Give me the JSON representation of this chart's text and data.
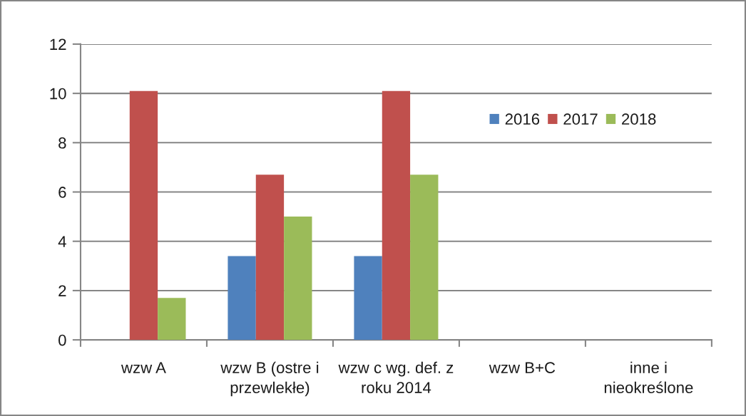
{
  "chart_data": {
    "type": "bar",
    "categories": [
      "wzw A",
      "wzw B (ostre i przewlekłe)",
      "wzw c wg. def. z roku 2014",
      "wzw B+C",
      "inne i nieokreślone"
    ],
    "series": [
      {
        "name": "2016",
        "color": "#4f81bd",
        "values": [
          null,
          3.4,
          3.4,
          null,
          null
        ]
      },
      {
        "name": "2017",
        "color": "#c0504d",
        "values": [
          10.1,
          6.7,
          10.1,
          null,
          null
        ]
      },
      {
        "name": "2018",
        "color": "#9bbb59",
        "values": [
          1.7,
          5.0,
          6.7,
          null,
          null
        ]
      }
    ],
    "ylim": [
      0,
      12
    ],
    "yticks": [
      0,
      2,
      4,
      6,
      8,
      10,
      12
    ],
    "grid": "y",
    "legend": "top right"
  }
}
